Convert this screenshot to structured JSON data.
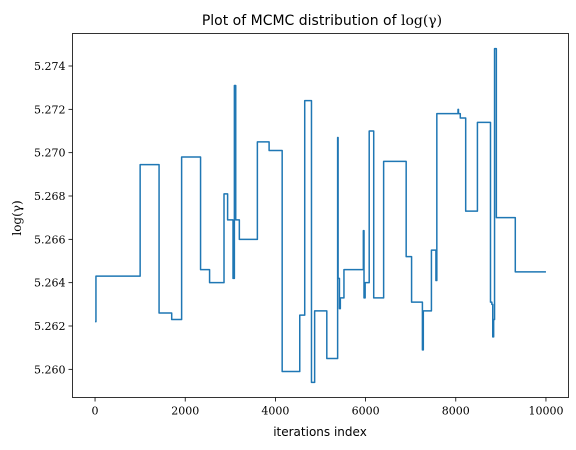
{
  "title_prefix": "Plot of MCMC distribution of ",
  "title_math": "log(γ)",
  "xlabel": "iterations index",
  "ylabel": "log(γ)",
  "chart_data": {
    "type": "line",
    "title": "Plot of MCMC distribution of log(γ)",
    "xlabel": "iterations index",
    "ylabel": "log(γ)",
    "xlim": [
      -500,
      10500
    ],
    "ylim": [
      5.2587,
      5.2755
    ],
    "xticks": [
      0,
      2000,
      4000,
      6000,
      8000,
      10000
    ],
    "xtick_labels": [
      "0",
      "2000",
      "4000",
      "6000",
      "8000",
      "10000"
    ],
    "yticks": [
      5.26,
      5.262,
      5.264,
      5.266,
      5.268,
      5.27,
      5.272,
      5.274
    ],
    "ytick_labels": [
      "5.260",
      "5.262",
      "5.264",
      "5.266",
      "5.268",
      "5.270",
      "5.272",
      "5.274"
    ],
    "grid": false,
    "legend": "none",
    "step": "post",
    "series": [
      {
        "color": "#1f77b4",
        "x": [
          0,
          20,
          1000,
          1420,
          1700,
          1920,
          2340,
          2540,
          2860,
          2940,
          3060,
          3090,
          3120,
          3200,
          3600,
          3860,
          4150,
          4540,
          4650,
          4800,
          4870,
          4900,
          5140,
          5380,
          5390,
          5420,
          5440,
          5520,
          5600,
          5950,
          5965,
          5990,
          6010,
          6080,
          6100,
          6180,
          6200,
          6400,
          6900,
          7020,
          7260,
          7280,
          7460,
          7560,
          7580,
          7620,
          8050,
          8060,
          8100,
          8220,
          8480,
          8770,
          8800,
          8820,
          8840,
          8860,
          8900,
          9320,
          10000
        ],
        "y": [
          5.2622,
          5.2643,
          5.26945,
          5.2626,
          5.2623,
          5.2698,
          5.2646,
          5.264,
          5.2681,
          5.2669,
          5.2642,
          5.2731,
          5.2669,
          5.266,
          5.2705,
          5.2701,
          5.2599,
          5.2625,
          5.2724,
          5.2594,
          5.2627,
          5.2627,
          5.2605,
          5.2707,
          5.2642,
          5.2628,
          5.2633,
          5.2646,
          5.2646,
          5.2664,
          5.2633,
          5.264,
          5.264,
          5.271,
          5.271,
          5.2633,
          5.2633,
          5.2696,
          5.2652,
          5.2631,
          5.2609,
          5.2627,
          5.2655,
          5.2641,
          5.2718,
          5.2718,
          5.272,
          5.2718,
          5.2716,
          5.2673,
          5.2714,
          5.2631,
          5.263,
          5.2615,
          5.2623,
          5.2748,
          5.267,
          5.2645,
          5.2645
        ]
      }
    ]
  }
}
